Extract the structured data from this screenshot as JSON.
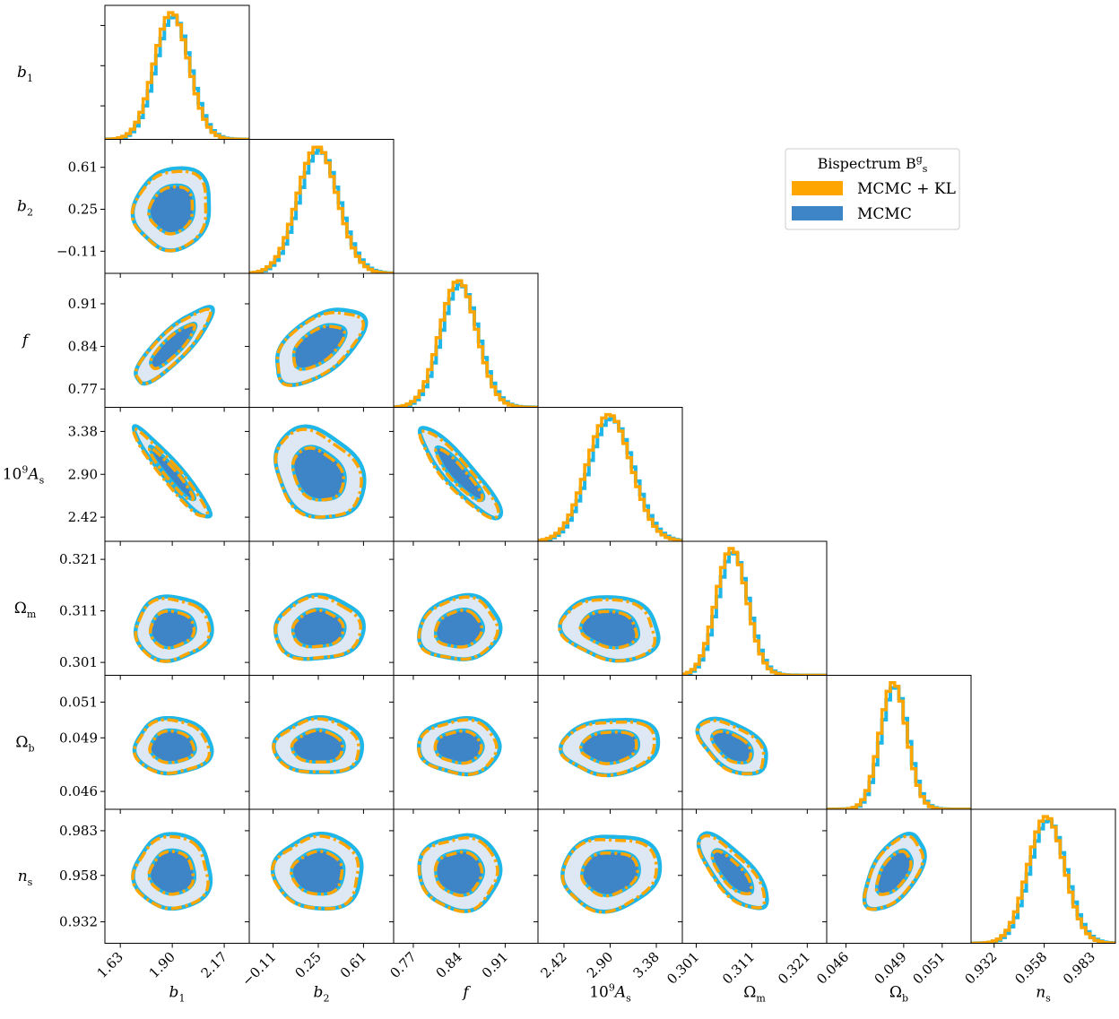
{
  "chart_data": {
    "type": "corner",
    "title": "",
    "legend": {
      "title": "Bispectrum B",
      "title_sup": "g",
      "title_sub": "s",
      "position": "right",
      "entries": [
        {
          "label": "MCMC + KL",
          "color": "#FFA500"
        },
        {
          "label": "MCMC",
          "color": "#3D85C6"
        }
      ]
    },
    "colors": {
      "kl_line": "#FFA500",
      "mcmc_line": "#1FB6E8",
      "inner_fill": "#3D85C6",
      "outer_fill": "#DDE8F4",
      "axis": "#000000"
    },
    "parameters": [
      {
        "name": "b",
        "sub": "1",
        "sup": "",
        "prefix": "",
        "center": 1.9,
        "sigma": 0.09,
        "ticks": [
          1.63,
          1.9,
          2.17
        ],
        "tick_labels": [
          "1.63",
          "1.90",
          "2.17"
        ],
        "range": [
          1.55,
          2.3
        ]
      },
      {
        "name": "b",
        "sub": "2",
        "sup": "",
        "prefix": "",
        "center": 0.25,
        "sigma": 0.16,
        "ticks": [
          -0.11,
          0.25,
          0.61
        ],
        "tick_labels": [
          "−0.11",
          "0.25",
          "0.61"
        ],
        "range": [
          -0.3,
          0.85
        ]
      },
      {
        "name": "f",
        "sub": "",
        "sup": "",
        "prefix": "",
        "center": 0.84,
        "sigma": 0.028,
        "ticks": [
          0.77,
          0.84,
          0.91
        ],
        "tick_labels": [
          "0.77",
          "0.84",
          "0.91"
        ],
        "range": [
          0.74,
          0.96
        ]
      },
      {
        "name": "A",
        "sub": "s",
        "sup": "9",
        "prefix": "10",
        "center": 2.9,
        "sigma": 0.23,
        "ticks": [
          2.42,
          2.9,
          3.38
        ],
        "tick_labels": [
          "2.42",
          "2.90",
          "3.38"
        ],
        "range": [
          2.15,
          3.65
        ]
      },
      {
        "name": "Ω",
        "sub": "m",
        "sup": "",
        "prefix": "",
        "center": 0.3075,
        "sigma": 0.0028,
        "ticks": [
          0.301,
          0.311,
          0.321
        ],
        "tick_labels": [
          "0.301",
          "0.311",
          "0.321"
        ],
        "range": [
          0.2985,
          0.3245
        ]
      },
      {
        "name": "Ω",
        "sub": "b",
        "sup": "",
        "prefix": "",
        "center": 0.0485,
        "sigma": 0.0007,
        "ticks": [
          0.046,
          0.049,
          0.051
        ],
        "tick_labels": [
          "0.046",
          "0.049",
          "0.051"
        ],
        "range": [
          0.045,
          0.0525
        ]
      },
      {
        "name": "n",
        "sub": "s",
        "sup": "",
        "prefix": "",
        "center": 0.9595,
        "sigma": 0.0095,
        "ticks": [
          0.932,
          0.958,
          0.983
        ],
        "tick_labels": [
          "0.932",
          "0.958",
          "0.983"
        ],
        "range": [
          0.92,
          0.995
        ]
      }
    ],
    "correlations": {
      "1,0": 0.1,
      "2,0": 0.85,
      "2,1": 0.55,
      "3,0": -0.95,
      "3,1": -0.25,
      "3,2": -0.9,
      "4,0": 0.05,
      "4,1": 0.05,
      "4,2": 0.1,
      "4,3": -0.15,
      "5,0": 0.0,
      "5,1": 0.0,
      "5,2": 0.0,
      "5,3": 0.1,
      "5,4": -0.5,
      "6,0": 0.0,
      "6,1": 0.0,
      "6,2": 0.0,
      "6,3": 0.1,
      "6,4": -0.75,
      "6,5": 0.55
    }
  }
}
